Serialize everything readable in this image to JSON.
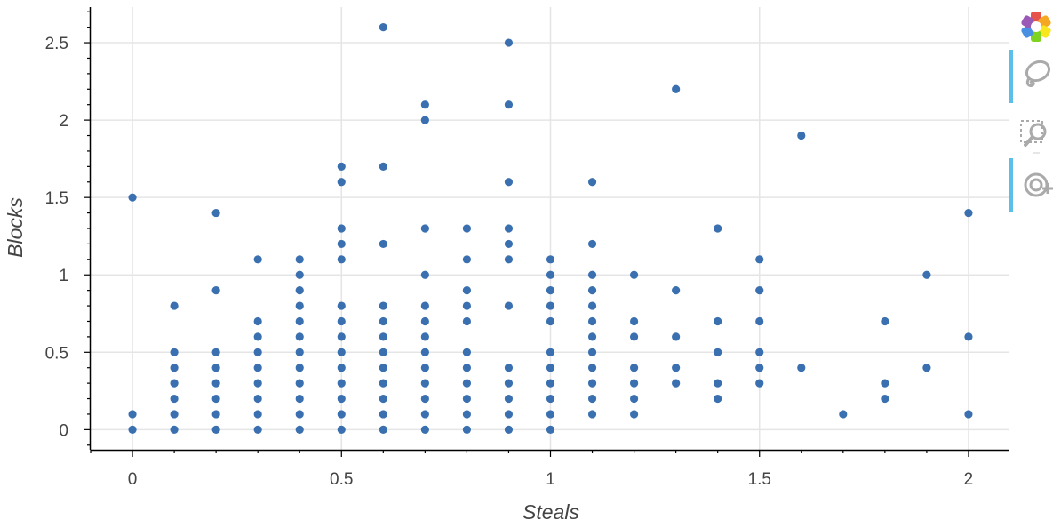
{
  "chart_data": {
    "type": "scatter",
    "xlabel": "Steals",
    "ylabel": "Blocks",
    "xlim": [
      -0.1,
      2.1
    ],
    "ylim": [
      -0.13,
      2.73
    ],
    "x_ticks": [
      0,
      0.5,
      1,
      1.5,
      2
    ],
    "x_tick_labels": [
      "0",
      "0.5",
      "1",
      "1.5",
      "2"
    ],
    "y_ticks": [
      0,
      0.5,
      1,
      1.5,
      2,
      2.5
    ],
    "y_tick_labels": [
      "0",
      "0.5",
      "1",
      "1.5",
      "2",
      "2.5"
    ],
    "grid": true,
    "marker_color": "#3a70b0",
    "points": [
      [
        0,
        0
      ],
      [
        0,
        0.1
      ],
      [
        0,
        1.5
      ],
      [
        0.1,
        0
      ],
      [
        0.1,
        0.1
      ],
      [
        0.1,
        0.2
      ],
      [
        0.1,
        0.3
      ],
      [
        0.1,
        0.4
      ],
      [
        0.1,
        0.5
      ],
      [
        0.1,
        0.8
      ],
      [
        0.2,
        0
      ],
      [
        0.2,
        0.1
      ],
      [
        0.2,
        0.2
      ],
      [
        0.2,
        0.3
      ],
      [
        0.2,
        0.4
      ],
      [
        0.2,
        0.5
      ],
      [
        0.2,
        0.9
      ],
      [
        0.2,
        1.4
      ],
      [
        0.3,
        0
      ],
      [
        0.3,
        0.1
      ],
      [
        0.3,
        0.2
      ],
      [
        0.3,
        0.3
      ],
      [
        0.3,
        0.4
      ],
      [
        0.3,
        0.5
      ],
      [
        0.3,
        0.6
      ],
      [
        0.3,
        0.7
      ],
      [
        0.3,
        1.1
      ],
      [
        0.4,
        0
      ],
      [
        0.4,
        0.1
      ],
      [
        0.4,
        0.2
      ],
      [
        0.4,
        0.3
      ],
      [
        0.4,
        0.4
      ],
      [
        0.4,
        0.5
      ],
      [
        0.4,
        0.6
      ],
      [
        0.4,
        0.7
      ],
      [
        0.4,
        0.8
      ],
      [
        0.4,
        0.9
      ],
      [
        0.4,
        1.0
      ],
      [
        0.4,
        1.1
      ],
      [
        0.5,
        0
      ],
      [
        0.5,
        0.1
      ],
      [
        0.5,
        0.2
      ],
      [
        0.5,
        0.3
      ],
      [
        0.5,
        0.4
      ],
      [
        0.5,
        0.5
      ],
      [
        0.5,
        0.6
      ],
      [
        0.5,
        0.7
      ],
      [
        0.5,
        0.8
      ],
      [
        0.5,
        1.1
      ],
      [
        0.5,
        1.2
      ],
      [
        0.5,
        1.3
      ],
      [
        0.5,
        1.6
      ],
      [
        0.5,
        1.7
      ],
      [
        0.6,
        0
      ],
      [
        0.6,
        0.1
      ],
      [
        0.6,
        0.2
      ],
      [
        0.6,
        0.3
      ],
      [
        0.6,
        0.4
      ],
      [
        0.6,
        0.5
      ],
      [
        0.6,
        0.6
      ],
      [
        0.6,
        0.7
      ],
      [
        0.6,
        0.8
      ],
      [
        0.6,
        1.2
      ],
      [
        0.6,
        1.7
      ],
      [
        0.6,
        2.6
      ],
      [
        0.7,
        0
      ],
      [
        0.7,
        0.1
      ],
      [
        0.7,
        0.2
      ],
      [
        0.7,
        0.3
      ],
      [
        0.7,
        0.4
      ],
      [
        0.7,
        0.5
      ],
      [
        0.7,
        0.6
      ],
      [
        0.7,
        0.7
      ],
      [
        0.7,
        0.8
      ],
      [
        0.7,
        1.0
      ],
      [
        0.7,
        1.3
      ],
      [
        0.7,
        2.0
      ],
      [
        0.7,
        2.1
      ],
      [
        0.8,
        0
      ],
      [
        0.8,
        0.1
      ],
      [
        0.8,
        0.2
      ],
      [
        0.8,
        0.3
      ],
      [
        0.8,
        0.4
      ],
      [
        0.8,
        0.5
      ],
      [
        0.8,
        0.7
      ],
      [
        0.8,
        0.8
      ],
      [
        0.8,
        0.9
      ],
      [
        0.8,
        1.1
      ],
      [
        0.8,
        1.3
      ],
      [
        0.9,
        0
      ],
      [
        0.9,
        0.1
      ],
      [
        0.9,
        0.2
      ],
      [
        0.9,
        0.3
      ],
      [
        0.9,
        0.4
      ],
      [
        0.9,
        0.8
      ],
      [
        0.9,
        1.1
      ],
      [
        0.9,
        1.2
      ],
      [
        0.9,
        1.3
      ],
      [
        0.9,
        1.6
      ],
      [
        0.9,
        2.1
      ],
      [
        0.9,
        2.5
      ],
      [
        1.0,
        0
      ],
      [
        1.0,
        0.1
      ],
      [
        1.0,
        0.2
      ],
      [
        1.0,
        0.3
      ],
      [
        1.0,
        0.4
      ],
      [
        1.0,
        0.5
      ],
      [
        1.0,
        0.7
      ],
      [
        1.0,
        0.8
      ],
      [
        1.0,
        0.9
      ],
      [
        1.0,
        1.0
      ],
      [
        1.0,
        1.1
      ],
      [
        1.1,
        0.1
      ],
      [
        1.1,
        0.2
      ],
      [
        1.1,
        0.3
      ],
      [
        1.1,
        0.4
      ],
      [
        1.1,
        0.5
      ],
      [
        1.1,
        0.6
      ],
      [
        1.1,
        0.7
      ],
      [
        1.1,
        0.8
      ],
      [
        1.1,
        0.9
      ],
      [
        1.1,
        1.0
      ],
      [
        1.1,
        1.2
      ],
      [
        1.1,
        1.6
      ],
      [
        1.2,
        0.1
      ],
      [
        1.2,
        0.2
      ],
      [
        1.2,
        0.3
      ],
      [
        1.2,
        0.4
      ],
      [
        1.2,
        0.6
      ],
      [
        1.2,
        0.7
      ],
      [
        1.2,
        1.0
      ],
      [
        1.3,
        0.3
      ],
      [
        1.3,
        0.4
      ],
      [
        1.3,
        0.6
      ],
      [
        1.3,
        0.9
      ],
      [
        1.3,
        2.2
      ],
      [
        1.4,
        0.2
      ],
      [
        1.4,
        0.3
      ],
      [
        1.4,
        0.5
      ],
      [
        1.4,
        0.7
      ],
      [
        1.4,
        1.3
      ],
      [
        1.5,
        0.3
      ],
      [
        1.5,
        0.4
      ],
      [
        1.5,
        0.5
      ],
      [
        1.5,
        0.7
      ],
      [
        1.5,
        0.9
      ],
      [
        1.5,
        1.1
      ],
      [
        1.6,
        0.4
      ],
      [
        1.6,
        1.9
      ],
      [
        1.7,
        0.1
      ],
      [
        1.8,
        0.2
      ],
      [
        1.8,
        0.3
      ],
      [
        1.8,
        0.7
      ],
      [
        1.9,
        0.4
      ],
      [
        1.9,
        1.0
      ],
      [
        2.0,
        0.1
      ],
      [
        2.0,
        0.6
      ],
      [
        2.0,
        1.4
      ]
    ]
  },
  "toolbar": {
    "tools": [
      {
        "icon": "bokeh-logo-icon",
        "active": false
      },
      {
        "icon": "lasso-select-icon",
        "active": true
      },
      {
        "icon": "box-zoom-icon",
        "active": false
      },
      {
        "icon": "wheel-zoom-icon",
        "active": true
      }
    ]
  }
}
